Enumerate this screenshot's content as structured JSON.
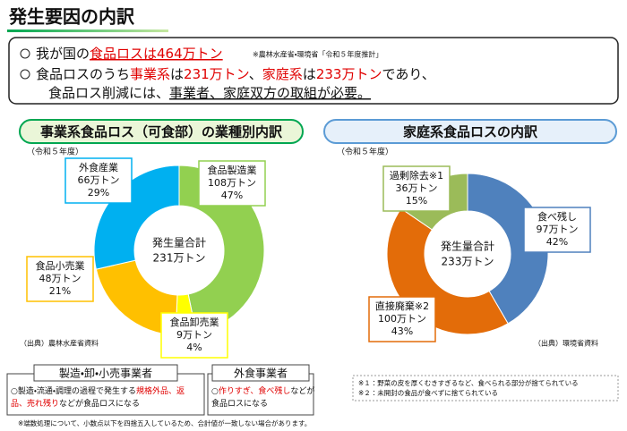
{
  "header": {
    "title": "発生要因の内訳"
  },
  "summary": {
    "lines": [
      [
        {
          "text": "我が国の"
        },
        {
          "text": "食品ロスは464万トン",
          "style": "red-underline"
        }
      ],
      [
        {
          "text": "食品ロスのうち"
        },
        {
          "text": "事業系",
          "style": "red"
        },
        {
          "text": "は"
        },
        {
          "text": "231万トン",
          "style": "red"
        },
        {
          "text": "、"
        },
        {
          "text": "家庭系",
          "style": "red"
        },
        {
          "text": "は"
        },
        {
          "text": "233万トン",
          "style": "red"
        },
        {
          "text": "であり、"
        }
      ],
      [
        {
          "text": "食品ロス削減には、"
        },
        {
          "text": "事業者、家庭双方の取組が必要。",
          "style": "underline"
        }
      ]
    ],
    "source": "※農林水産省・環境省「令和５年度推計」"
  },
  "chart_data": [
    {
      "type": "donut",
      "title": "事業系食品ロス（可食部）の業種別内訳",
      "subtitle": "（令和５年度）",
      "total_label": "発生量合計",
      "total": "231万トン",
      "categories": [
        "食品製造業",
        "食品卸売業",
        "食品小売業",
        "外食産業"
      ],
      "values": [
        108,
        9,
        48,
        66
      ],
      "value_labels": [
        "108万トン",
        "9万トン",
        "48万トン",
        "66万トン"
      ],
      "shares": [
        47,
        4,
        21,
        29
      ],
      "share_labels": [
        "47%",
        "4%",
        "21%",
        "29%"
      ],
      "colors": [
        "#92d050",
        "#ffff00",
        "#ffc000",
        "#00b0f0"
      ],
      "source": "（出典）農林水産省資料"
    },
    {
      "type": "donut",
      "title": "家庭系食品ロスの内訳",
      "subtitle": "（令和５年度）",
      "total_label": "発生量合計",
      "total": "233万トン",
      "categories": [
        "食べ残し",
        "直接廃棄※2",
        "過剰除去※1"
      ],
      "values": [
        97,
        100,
        36
      ],
      "value_labels": [
        "97万トン",
        "100万トン",
        "36万トン"
      ],
      "shares": [
        42,
        43,
        15
      ],
      "share_labels": [
        "42%",
        "43%",
        "15%"
      ],
      "colors": [
        "#4f81bd",
        "#e36c09",
        "#9bbb59"
      ],
      "source": "（出典）環境省資料"
    }
  ],
  "boxes": [
    {
      "title": "製造・卸・小売事業者",
      "lines": [
        [
          {
            "text": "○製造・流通・調理の過程で発生する"
          },
          {
            "text": "規格外品、返",
            "style": "red"
          }
        ],
        [
          {
            "text": "品、売れ残り",
            "style": "red"
          },
          {
            "text": "などが食品ロスになる"
          }
        ]
      ]
    },
    {
      "title": "外食事業者",
      "lines": [
        [
          {
            "text": "○"
          },
          {
            "text": "作りすぎ、食べ残し",
            "style": "red"
          },
          {
            "text": "などが"
          }
        ],
        [
          {
            "text": "食品ロスになる"
          }
        ]
      ]
    }
  ],
  "notes": [
    "※１：野菜の皮を厚くむきすぎるなど、食べられる部分が捨てられている",
    "※２：未開封の食品が食べずに捨てられている"
  ],
  "footer": "※端数処理について、小数点以下を四捨五入しているため、合計値が一致しない場合があります。"
}
